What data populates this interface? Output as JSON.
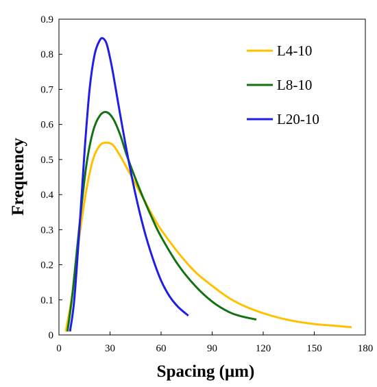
{
  "chart_data": {
    "type": "line",
    "xlabel": "Spacing (μm)",
    "ylabel": "Frequency",
    "xlim": [
      0,
      180
    ],
    "ylim": [
      0,
      0.9
    ],
    "xticks": [
      0,
      30,
      60,
      90,
      120,
      150,
      180
    ],
    "yticks": [
      0,
      0.1,
      0.2,
      0.3,
      0.4,
      0.5,
      0.6,
      0.7,
      0.8,
      0.9
    ],
    "xtick_labels": [
      "0",
      "30",
      "60",
      "90",
      "120",
      "150",
      "180"
    ],
    "ytick_labels": [
      "0",
      "0.1",
      "0.2",
      "0.3",
      "0.4",
      "0.5",
      "0.6",
      "0.7",
      "0.8",
      "0.9"
    ],
    "grid": false,
    "legend_position": "top-right",
    "series": [
      {
        "name": "L4-10",
        "color": "#FFC000",
        "x": [
          4,
          8,
          12,
          16,
          20,
          24,
          28,
          32,
          36,
          40,
          45,
          50,
          55,
          60,
          70,
          80,
          90,
          100,
          110,
          120,
          130,
          140,
          150,
          160,
          172
        ],
        "y": [
          0.01,
          0.12,
          0.28,
          0.41,
          0.5,
          0.54,
          0.548,
          0.54,
          0.51,
          0.475,
          0.43,
          0.385,
          0.34,
          0.3,
          0.235,
          0.18,
          0.14,
          0.105,
          0.08,
          0.062,
          0.048,
          0.038,
          0.031,
          0.027,
          0.022
        ]
      },
      {
        "name": "L8-10",
        "color": "#127212",
        "x": [
          5,
          8,
          12,
          16,
          20,
          24,
          28,
          32,
          36,
          40,
          45,
          50,
          55,
          60,
          70,
          80,
          90,
          100,
          108,
          116
        ],
        "y": [
          0.01,
          0.12,
          0.31,
          0.48,
          0.58,
          0.625,
          0.635,
          0.615,
          0.57,
          0.51,
          0.445,
          0.385,
          0.33,
          0.28,
          0.2,
          0.14,
          0.095,
          0.065,
          0.052,
          0.044
        ]
      },
      {
        "name": "L20-10",
        "color": "#1E1EE6",
        "x": [
          6.5,
          9,
          12,
          15,
          18,
          21,
          24,
          26,
          28,
          30,
          32,
          35,
          40,
          45,
          50,
          55,
          60,
          65,
          70,
          76
        ],
        "y": [
          0.01,
          0.1,
          0.3,
          0.52,
          0.7,
          0.8,
          0.84,
          0.845,
          0.83,
          0.79,
          0.74,
          0.655,
          0.52,
          0.4,
          0.3,
          0.22,
          0.155,
          0.11,
          0.08,
          0.055
        ]
      }
    ]
  }
}
